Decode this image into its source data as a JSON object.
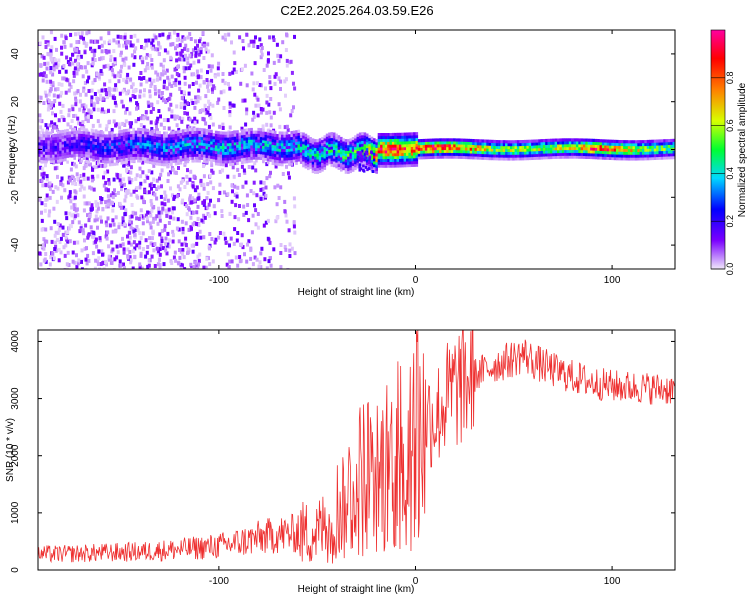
{
  "title": "C2E2.2025.264.03.59.E26",
  "chart_data": [
    {
      "type": "heatmap",
      "title": "C2E2.2025.264.03.59.E26",
      "xlabel": "Height of straight line (km)",
      "ylabel": "Frequency (Hz)",
      "xlim": [
        -192,
        132
      ],
      "ylim": [
        -50,
        50
      ],
      "xticks": [
        -100,
        0,
        100
      ],
      "xtick_labels": [
        "-100",
        "0",
        "100"
      ],
      "yticks": [
        -40,
        -20,
        0,
        20,
        40
      ],
      "ytick_labels": [
        "-40",
        "-20",
        "0",
        "20",
        "40"
      ],
      "colorbar": {
        "label": "Normalized spectral amplitude",
        "range": [
          0,
          1
        ],
        "ticks": [
          0,
          0.2,
          0.4,
          0.6,
          0.8
        ],
        "tick_labels": [
          "0.0",
          "0.2",
          "0.4",
          "0.6",
          "0.8"
        ],
        "colors": [
          "#f0e8fa",
          "#7a00ff",
          "#0000ff",
          "#00d8ff",
          "#00ff30",
          "#d8ff00",
          "#ff8000",
          "#ff0000",
          "#ff00a0"
        ]
      },
      "ridge": [
        {
          "x": -180,
          "amp": 0.2
        },
        {
          "x": -150,
          "amp": 0.3
        },
        {
          "x": -130,
          "amp": 0.35
        },
        {
          "x": -100,
          "amp": 0.4
        },
        {
          "x": -70,
          "amp": 0.4
        },
        {
          "x": -50,
          "amp": 0.45
        },
        {
          "x": -40,
          "amp": 0.5
        },
        {
          "x": -30,
          "amp": 0.5
        },
        {
          "x": -20,
          "amp": 0.85
        },
        {
          "x": -10,
          "amp": 0.9
        },
        {
          "x": 0,
          "amp": 0.8
        },
        {
          "x": 10,
          "amp": 0.95
        },
        {
          "x": 20,
          "amp": 0.85
        },
        {
          "x": 40,
          "amp": 0.6
        },
        {
          "x": 60,
          "amp": 0.6
        },
        {
          "x": 80,
          "amp": 0.65
        },
        {
          "x": 90,
          "amp": 0.9
        },
        {
          "x": 100,
          "amp": 0.8
        },
        {
          "x": 120,
          "amp": 0.55
        }
      ]
    },
    {
      "type": "line",
      "xlabel": "Height of straight line (km)",
      "ylabel": "SNR (10 * v/v)",
      "xlim": [
        -192,
        132
      ],
      "ylim": [
        0,
        4200
      ],
      "xticks": [
        -100,
        0,
        100
      ],
      "xtick_labels": [
        "-100",
        "0",
        "100"
      ],
      "yticks": [
        0,
        1000,
        2000,
        3000,
        4000
      ],
      "ytick_labels": [
        "0",
        "1000",
        "2000",
        "3000",
        "4000"
      ],
      "color": "#ee3030",
      "series": [
        {
          "name": "SNR",
          "x": [
            -192,
            -180,
            -160,
            -140,
            -120,
            -100,
            -90,
            -80,
            -70,
            -60,
            -50,
            -45,
            -40,
            -35,
            -30,
            -25,
            -20,
            -15,
            -10,
            -5,
            0,
            5,
            10,
            15,
            20,
            25,
            30,
            40,
            50,
            55,
            60,
            70,
            80,
            90,
            100,
            110,
            120,
            132
          ],
          "y": [
            280,
            280,
            300,
            320,
            360,
            420,
            480,
            560,
            620,
            640,
            660,
            800,
            1050,
            1300,
            1500,
            1750,
            1550,
            1800,
            2000,
            2350,
            2500,
            2700,
            2650,
            2950,
            3150,
            3300,
            3400,
            3580,
            3700,
            3780,
            3650,
            3500,
            3380,
            3280,
            3220,
            3200,
            3180,
            3160
          ]
        }
      ]
    }
  ]
}
